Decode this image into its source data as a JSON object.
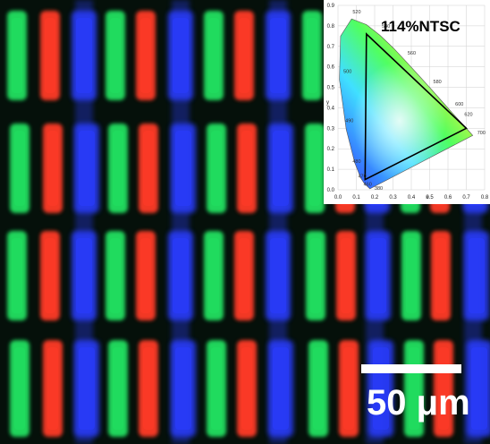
{
  "image": {
    "description_colors": {
      "green": "#22e060",
      "red": "#ff3a28",
      "blue": "#2a3cff",
      "background": "#06120c"
    }
  },
  "inset": {
    "title": "114%NTSC",
    "x_axis_label": "x",
    "y_axis_label": "y",
    "x_ticks": [
      "0.0",
      "0.1",
      "0.2",
      "0.3",
      "0.4",
      "0.5",
      "0.6",
      "0.7",
      "0.8"
    ],
    "y_ticks": [
      "0.0",
      "0.1",
      "0.2",
      "0.3",
      "0.4",
      "0.5",
      "0.6",
      "0.7",
      "0.8",
      "0.9"
    ],
    "wavelength_labels": [
      "520",
      "540",
      "560",
      "580",
      "600",
      "620",
      "700",
      "500",
      "490",
      "480",
      "470",
      "460",
      "380"
    ],
    "triangle_color": "#000000"
  },
  "scale_bar": {
    "label": "50 μm",
    "color": "#ffffff"
  }
}
